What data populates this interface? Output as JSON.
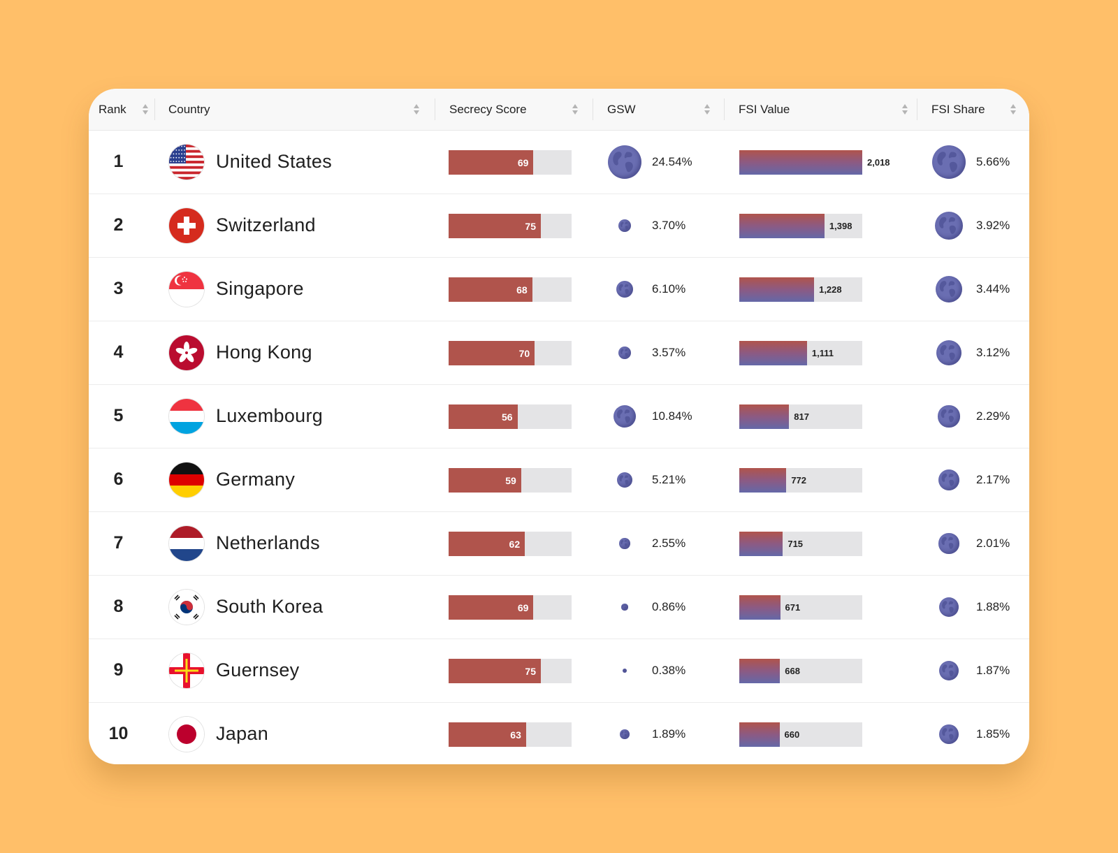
{
  "colors": {
    "background": "#FFBF69",
    "secrecy_bar": "#B0544C",
    "globe": "#6a6eb2",
    "track": "#e4e4e6"
  },
  "header": {
    "rank": "Rank",
    "country": "Country",
    "secrecy_score": "Secrecy Score",
    "gsw": "GSW",
    "fsi_value": "FSI Value",
    "fsi_share": "FSI Share"
  },
  "rows": [
    {
      "rank": "1",
      "country": "United States",
      "flag": "us-flag-icon",
      "secrecy_score": "69",
      "gsw": "24.54%",
      "fsi_value": "2,018",
      "fsi_share": "5.66%"
    },
    {
      "rank": "2",
      "country": "Switzerland",
      "flag": "ch-flag-icon",
      "secrecy_score": "75",
      "gsw": "3.70%",
      "fsi_value": "1,398",
      "fsi_share": "3.92%"
    },
    {
      "rank": "3",
      "country": "Singapore",
      "flag": "sg-flag-icon",
      "secrecy_score": "68",
      "gsw": "6.10%",
      "fsi_value": "1,228",
      "fsi_share": "3.44%"
    },
    {
      "rank": "4",
      "country": "Hong Kong",
      "flag": "hk-flag-icon",
      "secrecy_score": "70",
      "gsw": "3.57%",
      "fsi_value": "1,111",
      "fsi_share": "3.12%"
    },
    {
      "rank": "5",
      "country": "Luxembourg",
      "flag": "lu-flag-icon",
      "secrecy_score": "56",
      "gsw": "10.84%",
      "fsi_value": "817",
      "fsi_share": "2.29%"
    },
    {
      "rank": "6",
      "country": "Germany",
      "flag": "de-flag-icon",
      "secrecy_score": "59",
      "gsw": "5.21%",
      "fsi_value": "772",
      "fsi_share": "2.17%"
    },
    {
      "rank": "7",
      "country": "Netherlands",
      "flag": "nl-flag-icon",
      "secrecy_score": "62",
      "gsw": "2.55%",
      "fsi_value": "715",
      "fsi_share": "2.01%"
    },
    {
      "rank": "8",
      "country": "South Korea",
      "flag": "kr-flag-icon",
      "secrecy_score": "69",
      "gsw": "0.86%",
      "fsi_value": "671",
      "fsi_share": "1.88%"
    },
    {
      "rank": "9",
      "country": "Guernsey",
      "flag": "gg-flag-icon",
      "secrecy_score": "75",
      "gsw": "0.38%",
      "fsi_value": "668",
      "fsi_share": "1.87%"
    },
    {
      "rank": "10",
      "country": "Japan",
      "flag": "jp-flag-icon",
      "secrecy_score": "63",
      "gsw": "1.89%",
      "fsi_value": "660",
      "fsi_share": "1.85%"
    }
  ]
}
